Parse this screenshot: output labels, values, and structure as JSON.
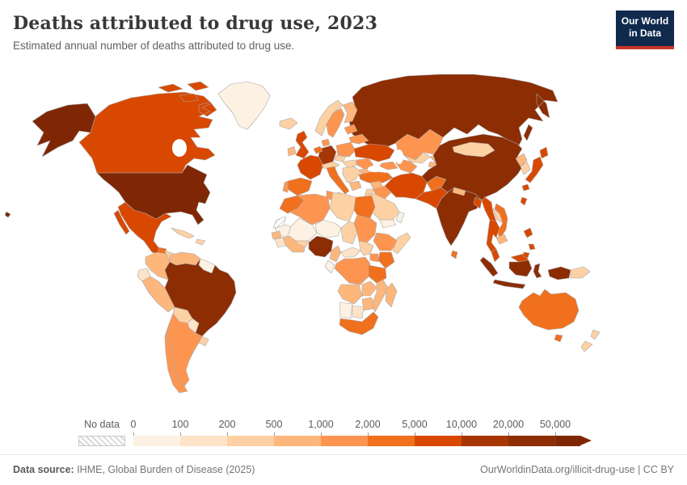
{
  "header": {
    "title": "Deaths attributed to drug use, 2023",
    "subtitle": "Estimated annual number of deaths attributed to drug use.",
    "logo_line1": "Our World",
    "logo_line2": "in Data",
    "logo_bg": "#102a4e",
    "logo_accent": "#cc3425"
  },
  "legend": {
    "no_data_label": "No data",
    "tick_labels": [
      "0",
      "100",
      "200",
      "500",
      "1,000",
      "2,000",
      "5,000",
      "10,000",
      "20,000",
      "50,000"
    ]
  },
  "footer": {
    "source_label": "Data source:",
    "source_text": " IHME, Global Burden of Disease (2025)",
    "link_text": "OurWorldinData.org/illicit-drug-use | CC BY"
  },
  "chart_data": {
    "type": "choropleth_map",
    "title": "Deaths attributed to drug use, 2023",
    "subtitle": "Estimated annual number of deaths attributed to drug use.",
    "year": "2023",
    "unit": "deaths",
    "projection": "world",
    "legend_position": "bottom",
    "bins": [
      {
        "label": "0-100",
        "color": "#fdf1e3"
      },
      {
        "label": "100-200",
        "color": "#fde4c8"
      },
      {
        "label": "200-500",
        "color": "#fdd1a4"
      },
      {
        "label": "500-1,000",
        "color": "#fdb77c"
      },
      {
        "label": "1,000-2,000",
        "color": "#fd9550"
      },
      {
        "label": "2,000-5,000",
        "color": "#f1701e"
      },
      {
        "label": "5,000-10,000",
        "color": "#d94801"
      },
      {
        "label": "10,000-20,000",
        "color": "#a63603"
      },
      {
        "label": "20,000-50,000",
        "color": "#8c2d04"
      },
      {
        "label": ">50,000",
        "color": "#7f2704"
      }
    ],
    "no_data_country": "western-sahara",
    "countries": {
      "canada": 6,
      "greenland": 0,
      "united-states": 9,
      "mexico": 6,
      "guatemala": 5,
      "honduras-nicaragua": 2,
      "costa-rica-panama": 2,
      "cuba": 2,
      "hispaniola": 2,
      "colombia": 3,
      "venezuela": 3,
      "guianas": 0,
      "ecuador": 1,
      "peru": 3,
      "brazil": 8,
      "bolivia": 2,
      "paraguay": 1,
      "uruguay": 2,
      "argentina": 4,
      "chile": 4,
      "iceland": 2,
      "united-kingdom": 6,
      "ireland": 3,
      "norway": 2,
      "sweden": 4,
      "finland": 3,
      "denmark": 4,
      "germany": 7,
      "france": 6,
      "benelux": 5,
      "switzerland-austria": 2,
      "spain": 5,
      "portugal": 4,
      "italy": 5,
      "poland": 4,
      "czechia": 2,
      "hungary": 2,
      "balkans": 2,
      "greece": 3,
      "romania": 4,
      "bulgaria": 3,
      "ukraine": 6,
      "belarus": 4,
      "baltics": 4,
      "russia": 8,
      "western-sahara": "no-data",
      "morocco": 5,
      "algeria": 4,
      "tunisia": 4,
      "libya": 2,
      "egypt": 5,
      "mauritania": 0,
      "mali": 0,
      "niger": 0,
      "chad": 2,
      "sudan": 4,
      "senegal": 3,
      "guinea": 1,
      "ivory-coast-ghana": 3,
      "burkina-faso": 2,
      "nigeria": 8,
      "cameroon": 3,
      "central-african-republic": 1,
      "south-sudan": 2,
      "ethiopia": 4,
      "somalia": 2,
      "kenya": 5,
      "uganda": 4,
      "drc": 4,
      "gabon-congo": 0,
      "tanzania": 5,
      "angola": 3,
      "zambia": 3,
      "mozambique": 3,
      "zimbabwe": 3,
      "namibia": 0,
      "botswana": 1,
      "south-africa": 5,
      "madagascar": 3,
      "turkey": 5,
      "syria": 3,
      "iraq": 4,
      "jordan-israel": 2,
      "saudi-arabia": 2,
      "yemen": 0,
      "oman": 0,
      "iran": 6,
      "afghanistan": 5,
      "pakistan": 6,
      "kazakhstan": 4,
      "uzbekistan": 2,
      "turkmenistan": 4,
      "kyrgyzstan": 3,
      "tajikistan": 3,
      "caucasus": 4,
      "india": 8,
      "nepal": 3,
      "bangladesh": 6,
      "sri-lanka": 5,
      "china": 8,
      "mongolia": 2,
      "north-korea": 3,
      "south-korea": 2,
      "japan": 6,
      "taiwan": 6,
      "myanmar": 6,
      "laos": 2,
      "thailand": 6,
      "vietnam": 5,
      "cambodia": 3,
      "malaysia": 6,
      "indonesia": 8,
      "papua-new-guinea": 2,
      "philippines": 6,
      "australia": 5,
      "new-zealand": 2
    }
  }
}
